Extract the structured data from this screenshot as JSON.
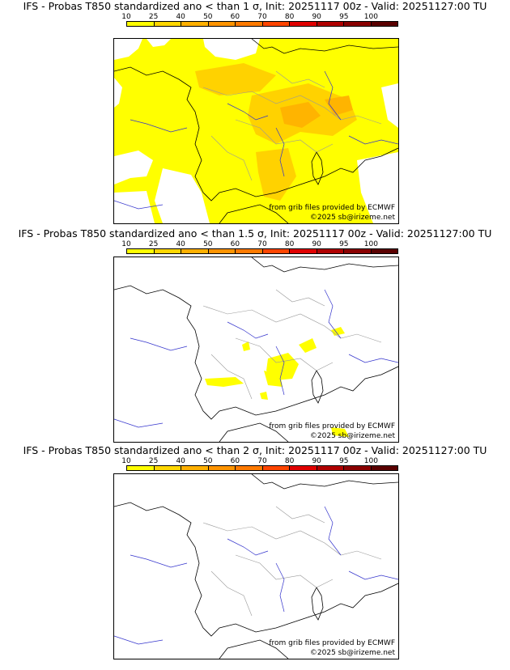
{
  "colorbar": {
    "ticks": [
      "10",
      "25",
      "40",
      "50",
      "60",
      "70",
      "80",
      "90",
      "95",
      "100"
    ],
    "colors": [
      "#ffff00",
      "#ffd700",
      "#ffb000",
      "#ff9400",
      "#ff7a00",
      "#ff4500",
      "#e00000",
      "#b00000",
      "#8a0000",
      "#5a0000"
    ]
  },
  "panels": [
    {
      "title": "IFS - Probas T850  standardized ano < than 1 σ, Init: 20251117 00z - Valid: 20251127:00 TU"
    },
    {
      "title": "IFS - Probas T850  standardized ano < than 1.5 σ, Init: 20251117 00z - Valid: 20251127:00 TU"
    },
    {
      "title": "IFS - Probas T850  standardized ano < than 2 σ, Init: 20251117 00z - Valid: 20251127:00 TU"
    }
  ],
  "credits": {
    "source": "from grib files provided by ECMWF",
    "copyright": "©2025 sb@irizeme.net"
  },
  "colors": {
    "coast": "#000000",
    "rivers": "#3333cc",
    "borders": "#999999",
    "prob_yellow": "#ffff00",
    "prob_gold": "#ffd200",
    "prob_orange": "#ffb400"
  }
}
